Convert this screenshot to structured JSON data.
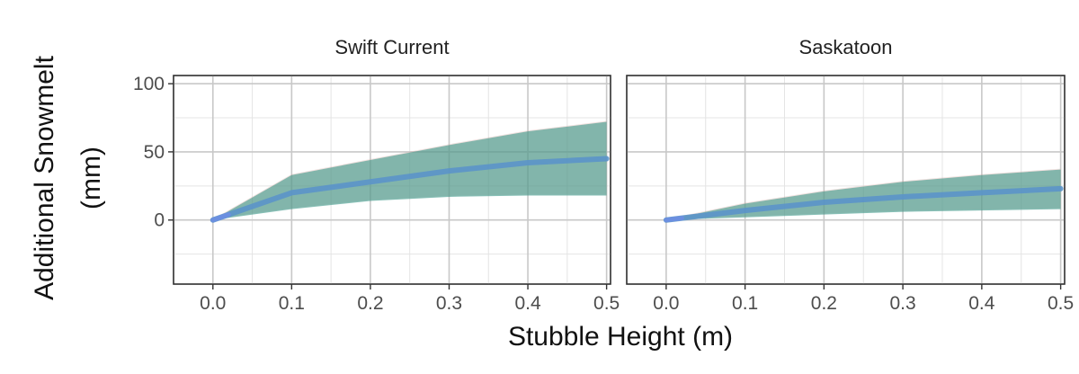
{
  "chart_data": {
    "type": "area",
    "ylabel": [
      "Additional Snowmelt",
      "(mm)"
    ],
    "xlabel": "Stubble Height (m)",
    "x_ticks": [
      "0.0",
      "0.1",
      "0.2",
      "0.3",
      "0.4",
      "0.5"
    ],
    "y_ticks": [
      "0",
      "50",
      "100"
    ],
    "xlim": [
      -0.05,
      0.505
    ],
    "ylim": [
      -47,
      106
    ],
    "grid": true,
    "legend": "none",
    "colors": {
      "band": "#3f9a8a",
      "band_tint": "#d3a9a4",
      "line": "#5b93c9",
      "line_start": "#6b8fe0"
    },
    "panels": [
      {
        "title": "Swift Current",
        "x": [
          0.0,
          0.1,
          0.2,
          0.3,
          0.4,
          0.5
        ],
        "mean": [
          0,
          20,
          28,
          36,
          42,
          45
        ],
        "lower": [
          0,
          8,
          14,
          17,
          18,
          18
        ],
        "upper": [
          0,
          33,
          44,
          55,
          65,
          72
        ]
      },
      {
        "title": "Saskatoon",
        "x": [
          0.0,
          0.1,
          0.2,
          0.3,
          0.4,
          0.5
        ],
        "mean": [
          0,
          7,
          13,
          17,
          20,
          23
        ],
        "lower": [
          0,
          2,
          4,
          6,
          7,
          8
        ],
        "upper": [
          0,
          12,
          21,
          28,
          33,
          37
        ]
      }
    ]
  }
}
